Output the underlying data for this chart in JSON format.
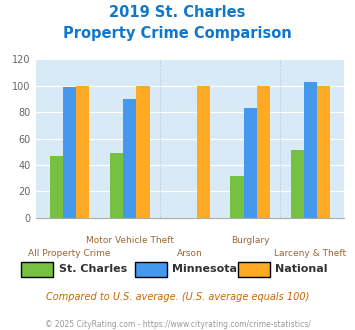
{
  "title_line1": "2019 St. Charles",
  "title_line2": "Property Crime Comparison",
  "categories": [
    "All Property Crime",
    "Motor Vehicle Theft",
    "Arson",
    "Burglary",
    "Larceny & Theft"
  ],
  "st_charles": [
    47,
    49,
    0,
    32,
    51
  ],
  "minnesota": [
    99,
    90,
    0,
    83,
    103
  ],
  "national": [
    100,
    100,
    100,
    100,
    100
  ],
  "colors": {
    "st_charles": "#77c142",
    "minnesota": "#4499ee",
    "national": "#ffaa22"
  },
  "ylim": [
    0,
    120
  ],
  "yticks": [
    0,
    20,
    40,
    60,
    80,
    100,
    120
  ],
  "bg_color": "#d8eaf5",
  "legend_labels": [
    "St. Charles",
    "Minnesota",
    "National"
  ],
  "note": "Compared to U.S. average. (U.S. average equals 100)",
  "footer": "© 2025 CityRating.com - https://www.cityrating.com/crime-statistics/",
  "title_color": "#1177cc",
  "note_color": "#cc6600",
  "footer_color": "#999999",
  "xlabel_color": "#996633",
  "row1_labels": [
    [
      1,
      "Motor Vehicle Theft"
    ],
    [
      3,
      "Burglary"
    ]
  ],
  "row2_labels": [
    [
      0,
      "All Property Crime"
    ],
    [
      2,
      "Arson"
    ],
    [
      4,
      "Larceny & Theft"
    ]
  ]
}
